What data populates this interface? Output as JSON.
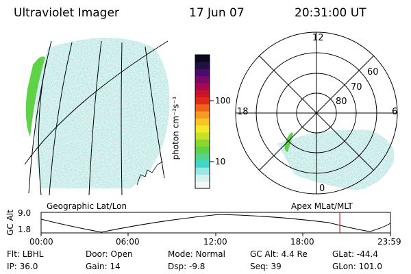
{
  "header": {
    "instrument": "Ultraviolet Imager",
    "date": "17 Jun 07",
    "time": "20:31:00 UT"
  },
  "colorbar": {
    "unit_label": "photon cm⁻²s⁻¹",
    "ticks": [
      "100",
      "10"
    ],
    "colors": [
      "#f4f8f4",
      "#d6f0ee",
      "#9de6e2",
      "#3fd7c8",
      "#54d48a",
      "#5fd24a",
      "#8ed62e",
      "#c8e026",
      "#f3e82a",
      "#f7c526",
      "#f59a1f",
      "#f0621a",
      "#e02a18",
      "#c81230",
      "#a8084f",
      "#7a0867",
      "#4a0a6e",
      "#22103e",
      "#0d0820"
    ]
  },
  "polar_plot": {
    "mlt_labels": {
      "top": "12",
      "left": "18",
      "right": "6",
      "bottom": "0"
    },
    "lat_labels": [
      "60",
      "70",
      "80"
    ]
  },
  "map_labels": {
    "left_caption": "Geographic Lat/Lon",
    "right_caption": "Apex MLat/MLT"
  },
  "altitude_panel": {
    "y_axis_label": "GC Alt",
    "y_ticks": [
      "9.0",
      "1.8"
    ],
    "x_ticks": [
      "00:00",
      "06:00",
      "12:00",
      "18:00",
      "23:59"
    ],
    "current_time_hours": 20.52,
    "marker_color": "#cc0000"
  },
  "status": {
    "row1": [
      {
        "key": "Flt:",
        "value": "LBHL"
      },
      {
        "key": "Door:",
        "value": "Open"
      },
      {
        "key": "Mode:",
        "value": "Normal"
      },
      {
        "key": "GC Alt:",
        "value": "4.4 Re"
      },
      {
        "key": "GLat:",
        "value": "-44.4"
      }
    ],
    "row2": [
      {
        "key": "IP:",
        "value": "36.0"
      },
      {
        "key": "Gain:",
        "value": "14"
      },
      {
        "key": "Dsp:",
        "value": "-9.8"
      },
      {
        "key": "Seq:",
        "value": "39"
      },
      {
        "key": "GLon:",
        "value": "101.0"
      }
    ]
  }
}
